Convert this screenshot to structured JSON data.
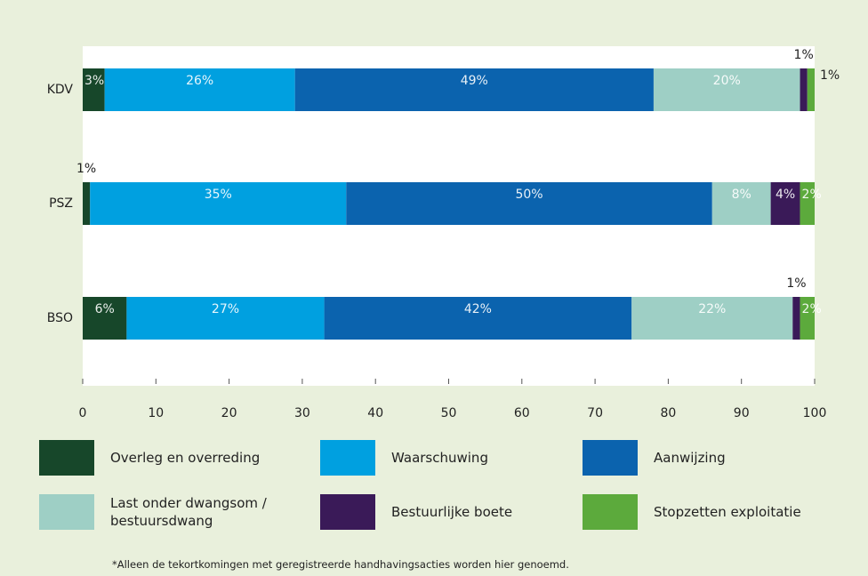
{
  "chart_data": {
    "type": "stacked-bar-horizontal",
    "categories": [
      "KDV",
      "PSZ",
      "BSO"
    ],
    "series": [
      {
        "name": "Overleg en overreding",
        "color": "#17472a",
        "values": [
          3,
          1,
          6
        ],
        "value_labels": [
          "3%",
          "1%",
          "6%"
        ]
      },
      {
        "name": "Waarschuwing",
        "color": "#00a0e0",
        "values": [
          26,
          35,
          27
        ],
        "value_labels": [
          "26%",
          "35%",
          "27%"
        ]
      },
      {
        "name": "Aanwijzing",
        "color": "#0b63ae",
        "values": [
          49,
          50,
          42
        ],
        "value_labels": [
          "49%",
          "50%",
          "42%"
        ]
      },
      {
        "name": "Last onder dwangsom / bestuursdwang",
        "color": "#9ecfc5",
        "values": [
          20,
          8,
          22
        ],
        "value_labels": [
          "20%",
          "8%",
          "22%"
        ]
      },
      {
        "name": "Bestuurlijke boete",
        "color": "#3a1a58",
        "values": [
          1,
          4,
          1
        ],
        "value_labels": [
          "1%",
          "4%",
          "1%"
        ]
      },
      {
        "name": "Stopzetten exploitatie",
        "color": "#5caa3c",
        "values": [
          1,
          2,
          2
        ],
        "value_labels": [
          "1%",
          "2%",
          "2%"
        ]
      }
    ],
    "xlim": [
      0,
      100
    ],
    "xticks": [
      0,
      10,
      20,
      30,
      40,
      50,
      60,
      70,
      80,
      90,
      100
    ],
    "footnote": "*Alleen de tekortkomingen met geregistreerde handhavingsacties worden hier genoemd."
  }
}
